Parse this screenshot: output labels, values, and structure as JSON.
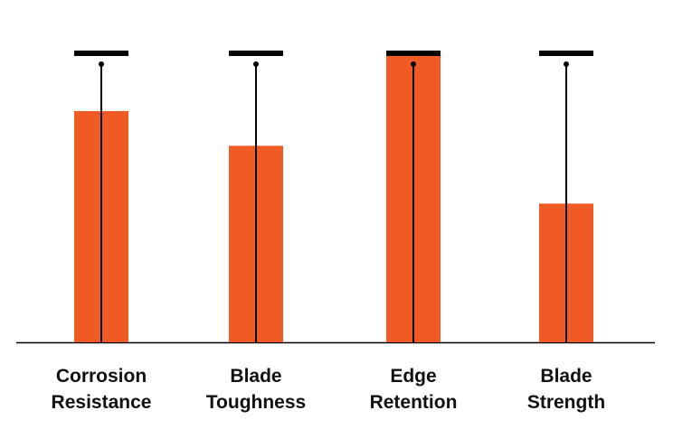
{
  "chart_data": {
    "type": "bar",
    "title": "",
    "xlabel": "",
    "ylabel": "",
    "ylim": [
      0,
      10
    ],
    "grid": false,
    "categories": [
      [
        "Corrosion",
        "Resistance"
      ],
      [
        "Blade",
        "Toughness"
      ],
      [
        "Edge",
        "Retention"
      ],
      [
        "Blade",
        "Strength"
      ]
    ],
    "values": [
      8.0,
      6.8,
      10.0,
      4.8
    ],
    "max_marker": 10,
    "colors": {
      "bar": "#f05a24",
      "marker": "#000000",
      "axis": "#000000"
    }
  }
}
